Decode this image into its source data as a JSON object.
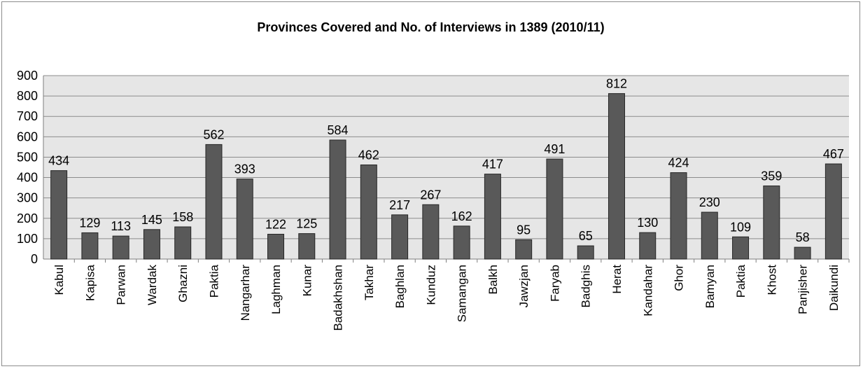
{
  "chart_data": {
    "type": "bar",
    "title": "Provinces Covered and No. of Interviews in 1389 (2010/11)",
    "xlabel": "",
    "ylabel": "",
    "ylim": [
      0,
      900
    ],
    "yticks": [
      0,
      100,
      200,
      300,
      400,
      500,
      600,
      700,
      800,
      900
    ],
    "grid": true,
    "legend": "none",
    "colors": {
      "bar": "#595959",
      "bar_edge": "#262626",
      "plot_bg": "#e6e6e6",
      "grid": "#8c8c8c"
    },
    "categories": [
      "Kabul",
      "Kapisa",
      "Parwan",
      "Wardak",
      "Ghazni",
      "Paktia",
      "Nangarhar",
      "Laghman",
      "Kunar",
      "Badakhshan",
      "Takhar",
      "Baghlan",
      "Kunduz",
      "Samangan",
      "Balkh",
      "Jawzjan",
      "Faryab",
      "Badghis",
      "Herat",
      "Kandahar",
      "Ghor",
      "Bamyan",
      "Paktia",
      "Khost",
      "Panjisher",
      "Daikundi"
    ],
    "values": [
      434,
      129,
      113,
      145,
      158,
      562,
      393,
      122,
      125,
      584,
      462,
      217,
      267,
      162,
      417,
      95,
      491,
      65,
      812,
      130,
      424,
      230,
      109,
      359,
      58,
      467
    ]
  }
}
